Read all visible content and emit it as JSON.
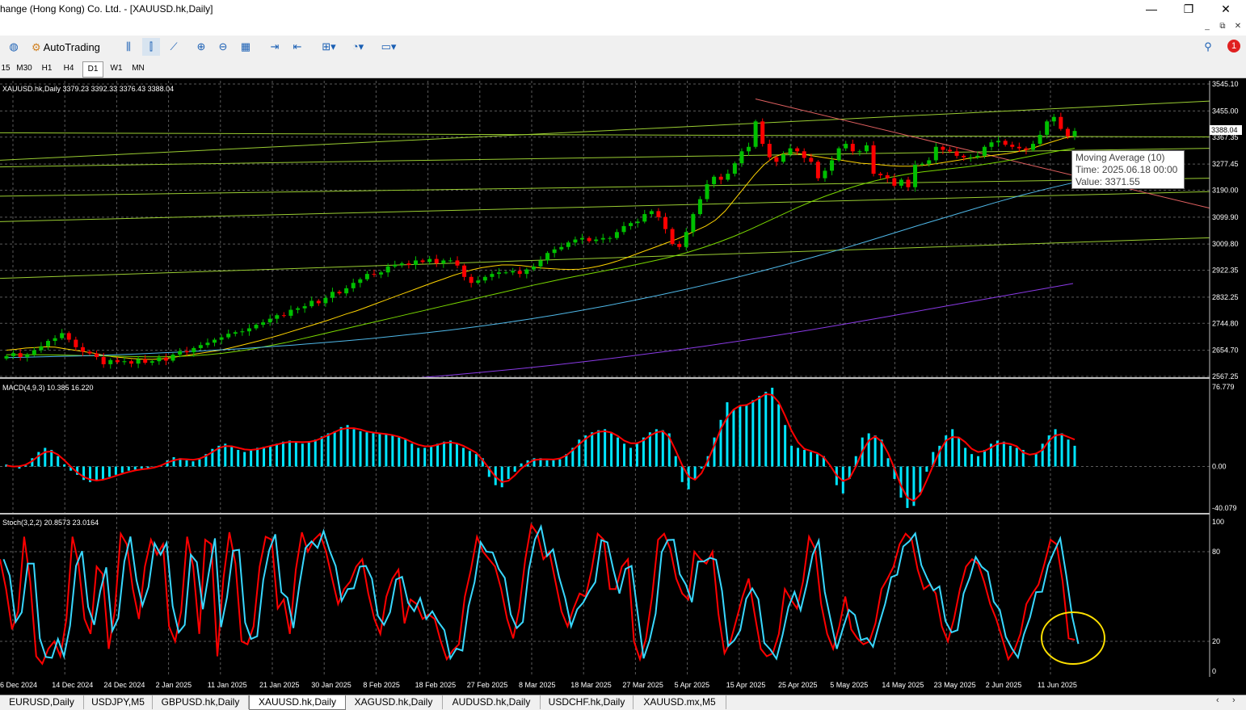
{
  "window": {
    "title": "hange (Hong Kong) Co. Ltd. - [XAUUSD.hk,Daily]"
  },
  "toolbar": {
    "autotrading_label": "AutoTrading",
    "notification_count": "1"
  },
  "timeframes": [
    "15",
    "M30",
    "H1",
    "H4",
    "D1",
    "W1",
    "MN"
  ],
  "selected_timeframe": "D1",
  "tabs": [
    "EURUSD,Daily",
    "USDJPY,M5",
    "GBPUSD.hk,Daily",
    "XAUUSD.hk,Daily",
    "XAGUSD.hk,Daily",
    "AUDUSD.hk,Daily",
    "USDCHF.hk,Daily",
    "XAUUSD.mx,M5"
  ],
  "active_tab": "XAUUSD.hk,Daily",
  "colors": {
    "bull": "#00c000",
    "bear": "#ff0000",
    "grid": "#5a5a5a",
    "macd_hist": "#00e5ff",
    "macd_signal": "#ff0000",
    "stoch_main": "#38d8ff",
    "stoch_signal": "#ff0000",
    "ma_short": "#ffd400",
    "ma_mid": "#7ad800",
    "ma_long": "#4fb8e8",
    "ma_200": "#8a3ae6",
    "trend_green": "#9acd32",
    "trend_red": "#e06060",
    "highlight_circle": "#ffe000"
  },
  "chart_data": [
    {
      "type": "candlestick",
      "title": "XAUUSD.hk,Daily  3379.23 3392.33 3376.43 3388.04",
      "symbol": "XAUUSD.hk,Daily",
      "ohlc_header": "3379.23 3392.33 3376.43 3388.04",
      "current_price_label": "3388.04",
      "y_ticks": [
        "3545.10",
        "3455.00",
        "3367.35",
        "3277.45",
        "3190.00",
        "3099.90",
        "3009.80",
        "2922.35",
        "2832.25",
        "2744.80",
        "2654.70",
        "2567.25"
      ],
      "ylim": [
        2567.25,
        3545.1
      ],
      "x_ticks": [
        "6 Dec 2024",
        "14 Dec 2024",
        "24 Dec 2024",
        "2 Jan 2025",
        "11 Jan 2025",
        "21 Jan 2025",
        "30 Jan 2025",
        "8 Feb 2025",
        "18 Feb 2025",
        "27 Feb 2025",
        "8 Mar 2025",
        "18 Mar 2025",
        "27 Mar 2025",
        "5 Apr 2025",
        "15 Apr 2025",
        "25 Apr 2025",
        "5 May 2025",
        "14 May 2025",
        "23 May 2025",
        "2 Jun 2025",
        "11 Jun 2025"
      ],
      "close": [
        2635,
        2645,
        2632,
        2640,
        2655,
        2668,
        2686,
        2695,
        2712,
        2690,
        2665,
        2650,
        2644,
        2632,
        2608,
        2622,
        2615,
        2618,
        2610,
        2625,
        2613,
        2618,
        2630,
        2620,
        2640,
        2652,
        2648,
        2662,
        2672,
        2680,
        2690,
        2698,
        2710,
        2715,
        2718,
        2728,
        2740,
        2748,
        2760,
        2772,
        2770,
        2790,
        2795,
        2802,
        2820,
        2812,
        2830,
        2850,
        2845,
        2862,
        2880,
        2892,
        2910,
        2908,
        2915,
        2935,
        2940,
        2945,
        2940,
        2955,
        2950,
        2960,
        2945,
        2955,
        2955,
        2938,
        2900,
        2880,
        2888,
        2900,
        2910,
        2915,
        2915,
        2920,
        2910,
        2925,
        2935,
        2955,
        2980,
        2992,
        3000,
        3015,
        3025,
        3030,
        3020,
        3025,
        3030,
        3030,
        3050,
        3070,
        3080,
        3085,
        3110,
        3120,
        3100,
        3060,
        3010,
        3000,
        3050,
        3110,
        3160,
        3210,
        3235,
        3225,
        3245,
        3280,
        3320,
        3335,
        3420,
        3345,
        3300,
        3285,
        3310,
        3330,
        3320,
        3298,
        3285,
        3230,
        3255,
        3290,
        3330,
        3345,
        3320,
        3320,
        3340,
        3245,
        3240,
        3230,
        3205,
        3225,
        3200,
        3275,
        3278,
        3290,
        3335,
        3325,
        3320,
        3305,
        3300,
        3300,
        3305,
        3335,
        3350,
        3355,
        3342,
        3335,
        3330,
        3325,
        3345,
        3375,
        3420,
        3435,
        3395,
        3370,
        3388
      ],
      "ma10": [
        2655,
        2658,
        2662,
        2664,
        2666,
        2665,
        2660,
        2655,
        2650,
        2645,
        2638,
        2633,
        2630,
        2627,
        2625,
        2624,
        2626,
        2630,
        2635,
        2640,
        2645,
        2650,
        2655,
        2662,
        2670,
        2678,
        2686,
        2695,
        2704,
        2714,
        2724,
        2734,
        2744,
        2754,
        2765,
        2776,
        2786,
        2798,
        2810,
        2822,
        2834,
        2846,
        2858,
        2870,
        2882,
        2893,
        2905,
        2915,
        2924,
        2931,
        2936,
        2940,
        2940,
        2938,
        2934,
        2930,
        2928,
        2926,
        2925,
        2926,
        2930,
        2936,
        2944,
        2954,
        2966,
        2978,
        2990,
        3002,
        3014,
        3026,
        3040,
        3055,
        3070,
        3090,
        3120,
        3160,
        3200,
        3240,
        3275,
        3300,
        3312,
        3315,
        3310,
        3305,
        3300,
        3295,
        3290,
        3285,
        3280,
        3278,
        3275,
        3272,
        3270,
        3270,
        3272,
        3275,
        3280,
        3285,
        3290,
        3296,
        3300,
        3304,
        3308,
        3312,
        3318,
        3325,
        3334,
        3345,
        3355,
        3365,
        3371
      ],
      "ma_mid": [
        2640,
        2640,
        2640,
        2639,
        2638,
        2637,
        2636,
        2635,
        2634,
        2633,
        2633,
        2634,
        2636,
        2640,
        2645,
        2652,
        2660,
        2670,
        2680,
        2692,
        2704,
        2716,
        2728,
        2740,
        2752,
        2764,
        2776,
        2788,
        2800,
        2812,
        2824,
        2836,
        2848,
        2860,
        2872,
        2883,
        2894,
        2904,
        2914,
        2924,
        2934,
        2945,
        2956,
        2968,
        2982,
        2998,
        3016,
        3036,
        3058,
        3082,
        3106,
        3130,
        3152,
        3172,
        3190,
        3206,
        3220,
        3232,
        3242,
        3250,
        3256,
        3262,
        3268,
        3275,
        3283,
        3292,
        3302,
        3312,
        3322,
        3330
      ],
      "ma_long": [
        2630,
        2632,
        2634,
        2636,
        2639,
        2642,
        2646,
        2650,
        2655,
        2660,
        2666,
        2672,
        2679,
        2686,
        2694,
        2703,
        2712,
        2722,
        2733,
        2745,
        2758,
        2772,
        2787,
        2803,
        2820,
        2838,
        2857,
        2877,
        2898,
        2920,
        2943,
        2967,
        2992,
        3018,
        3045,
        3072,
        3098,
        3124,
        3150,
        3174,
        3196,
        3216
      ],
      "ma_200": [
        2560,
        2570,
        2581,
        2593,
        2606,
        2620,
        2635,
        2651,
        2668,
        2686,
        2705,
        2725,
        2746,
        2768,
        2790,
        2812,
        2834,
        2856,
        2878
      ]
    },
    {
      "type": "bar",
      "title": "MACD(4,9,3) 10.385 16.220",
      "y_ticks": [
        "76.779",
        "0.00",
        "-40.079"
      ],
      "ylim": [
        -40.079,
        76.779
      ],
      "macd": [
        2,
        0,
        -2,
        1,
        8,
        14,
        18,
        16,
        10,
        2,
        -4,
        -8,
        -13,
        -15,
        -14,
        -12,
        -10,
        -8,
        -6,
        -4,
        -3,
        -2,
        -2,
        -1,
        1,
        6,
        9,
        8,
        6,
        5,
        7,
        12,
        17,
        20,
        22,
        20,
        16,
        14,
        16,
        18,
        19,
        20,
        22,
        24,
        25,
        24,
        22,
        23,
        26,
        29,
        32,
        34,
        38,
        40,
        36,
        34,
        33,
        32,
        32,
        31,
        30,
        28,
        26,
        22,
        18,
        18,
        20,
        22,
        24,
        25,
        22,
        18,
        15,
        12,
        8,
        -10,
        -18,
        -20,
        -12,
        -5,
        3,
        6,
        8,
        8,
        6,
        6,
        7,
        12,
        18,
        26,
        30,
        33,
        35,
        36,
        32,
        28,
        22,
        18,
        22,
        28,
        33,
        36,
        35,
        32,
        10,
        -15,
        -22,
        -12,
        -2,
        10,
        28,
        45,
        62,
        55,
        58,
        60,
        64,
        68,
        72,
        76,
        60,
        40,
        20,
        18,
        16,
        14,
        12,
        10,
        0,
        -18,
        -26,
        -12,
        10,
        28,
        32,
        30,
        26,
        8,
        -12,
        -30,
        -40,
        -38,
        -25,
        -5,
        14,
        20,
        30,
        36,
        28,
        18,
        12,
        10,
        16,
        22,
        25,
        24,
        20,
        18,
        16,
        0,
        12,
        22,
        30,
        36,
        32,
        26,
        20
      ]
    },
    {
      "type": "line",
      "title": "Stoch(3,2,2) 20.8573 23.0164",
      "y_ticks": [
        "100",
        "80",
        "20",
        "0"
      ],
      "ylim": [
        0,
        100
      ],
      "stoch": [
        75,
        55,
        28,
        40,
        90,
        60,
        10,
        5,
        15,
        20,
        10,
        35,
        90,
        72,
        35,
        25,
        70,
        65,
        15,
        40,
        92,
        85,
        55,
        35,
        70,
        88,
        78,
        85,
        30,
        20,
        40,
        90,
        70,
        25,
        88,
        85,
        10,
        62,
        93,
        72,
        20,
        18,
        30,
        70,
        90,
        88,
        42,
        48,
        25,
        68,
        93,
        80,
        88,
        92,
        80,
        62,
        45,
        55,
        60,
        70,
        75,
        52,
        35,
        25,
        50,
        62,
        68,
        32,
        48,
        45,
        35,
        38,
        35,
        20,
        8,
        14,
        18,
        50,
        68,
        90,
        80,
        75,
        70,
        55,
        35,
        22,
        42,
        75,
        98,
        92,
        75,
        80,
        60,
        40,
        30,
        42,
        52,
        50,
        68,
        92,
        88,
        55,
        55,
        70,
        75,
        20,
        8,
        22,
        50,
        88,
        92,
        82,
        62,
        52,
        48,
        80,
        75,
        72,
        80,
        38,
        12,
        20,
        35,
        50,
        62,
        38,
        15,
        10,
        12,
        25,
        55,
        48,
        42,
        60,
        90,
        82,
        45,
        25,
        15,
        30,
        50,
        28,
        22,
        18,
        20,
        32,
        55,
        62,
        70,
        85,
        92,
        88,
        68,
        55,
        58,
        52,
        30,
        20,
        35,
        55,
        70,
        75,
        72,
        60,
        45,
        35,
        22,
        8,
        14,
        25,
        45,
        52,
        58,
        72,
        88,
        85,
        60,
        22,
        21
      ]
    }
  ],
  "tooltip": {
    "line1": "Moving Average (10)",
    "line2": "Time: 2025.06.18 00:00",
    "line3": "Value: 3371.55"
  }
}
